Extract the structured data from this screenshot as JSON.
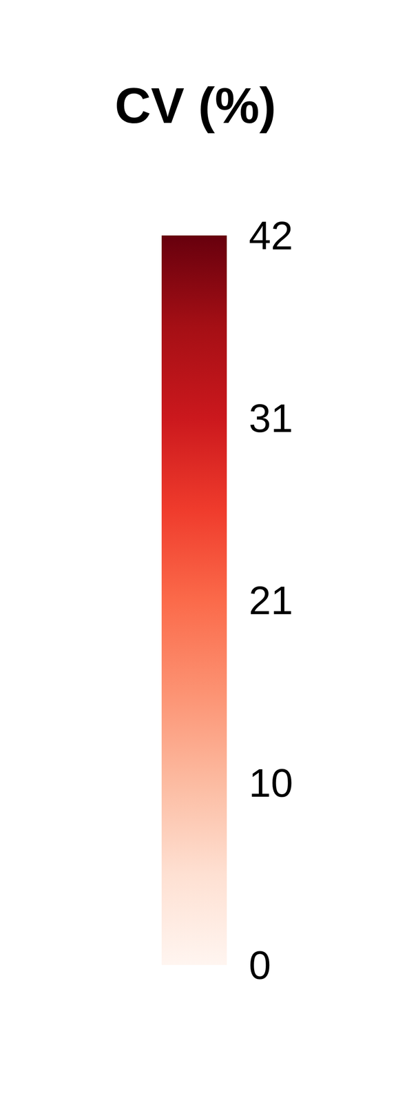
{
  "chart_data": {
    "type": "colorbar",
    "title": "CV (%)",
    "colorbar": {
      "range": [
        0,
        41.8
      ],
      "ticks": [
        0,
        {
          "value": 10.45,
          "label": "10"
        },
        {
          "value": 20.9,
          "label": "21"
        },
        {
          "value": 31.35,
          "label": "31"
        },
        {
          "value": 41.8,
          "label": "42"
        }
      ]
    }
  }
}
